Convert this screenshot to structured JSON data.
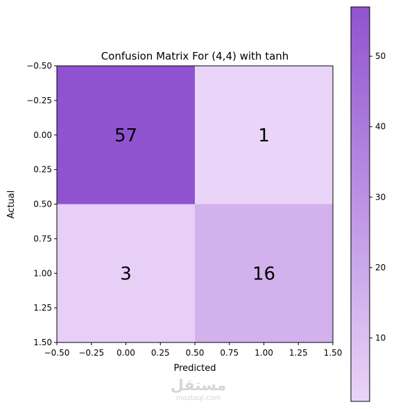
{
  "chart_data": {
    "type": "heatmap",
    "title": "Confusion Matrix For (4,4) with tanh",
    "xlabel": "Predicted",
    "ylabel": "Actual",
    "matrix": [
      [
        57,
        1
      ],
      [
        3,
        16
      ]
    ],
    "xlim": [
      -0.5,
      1.5
    ],
    "ylim": [
      -0.5,
      1.5
    ],
    "xticks": [
      "−0.50",
      "−0.25",
      "0.00",
      "0.25",
      "0.50",
      "0.75",
      "1.00",
      "1.25",
      "1.50"
    ],
    "yticks": [
      "−0.50",
      "−0.25",
      "0.00",
      "0.25",
      "0.50",
      "0.75",
      "1.00",
      "1.25",
      "1.50"
    ],
    "colorbar": {
      "min": 1,
      "max": 57,
      "ticks": [
        10,
        20,
        30,
        40,
        50
      ],
      "color_low": "#ead4f8",
      "color_high": "#9053d0"
    }
  },
  "watermark": {
    "arabic": "مستقل",
    "domain": "mostaql.com"
  }
}
